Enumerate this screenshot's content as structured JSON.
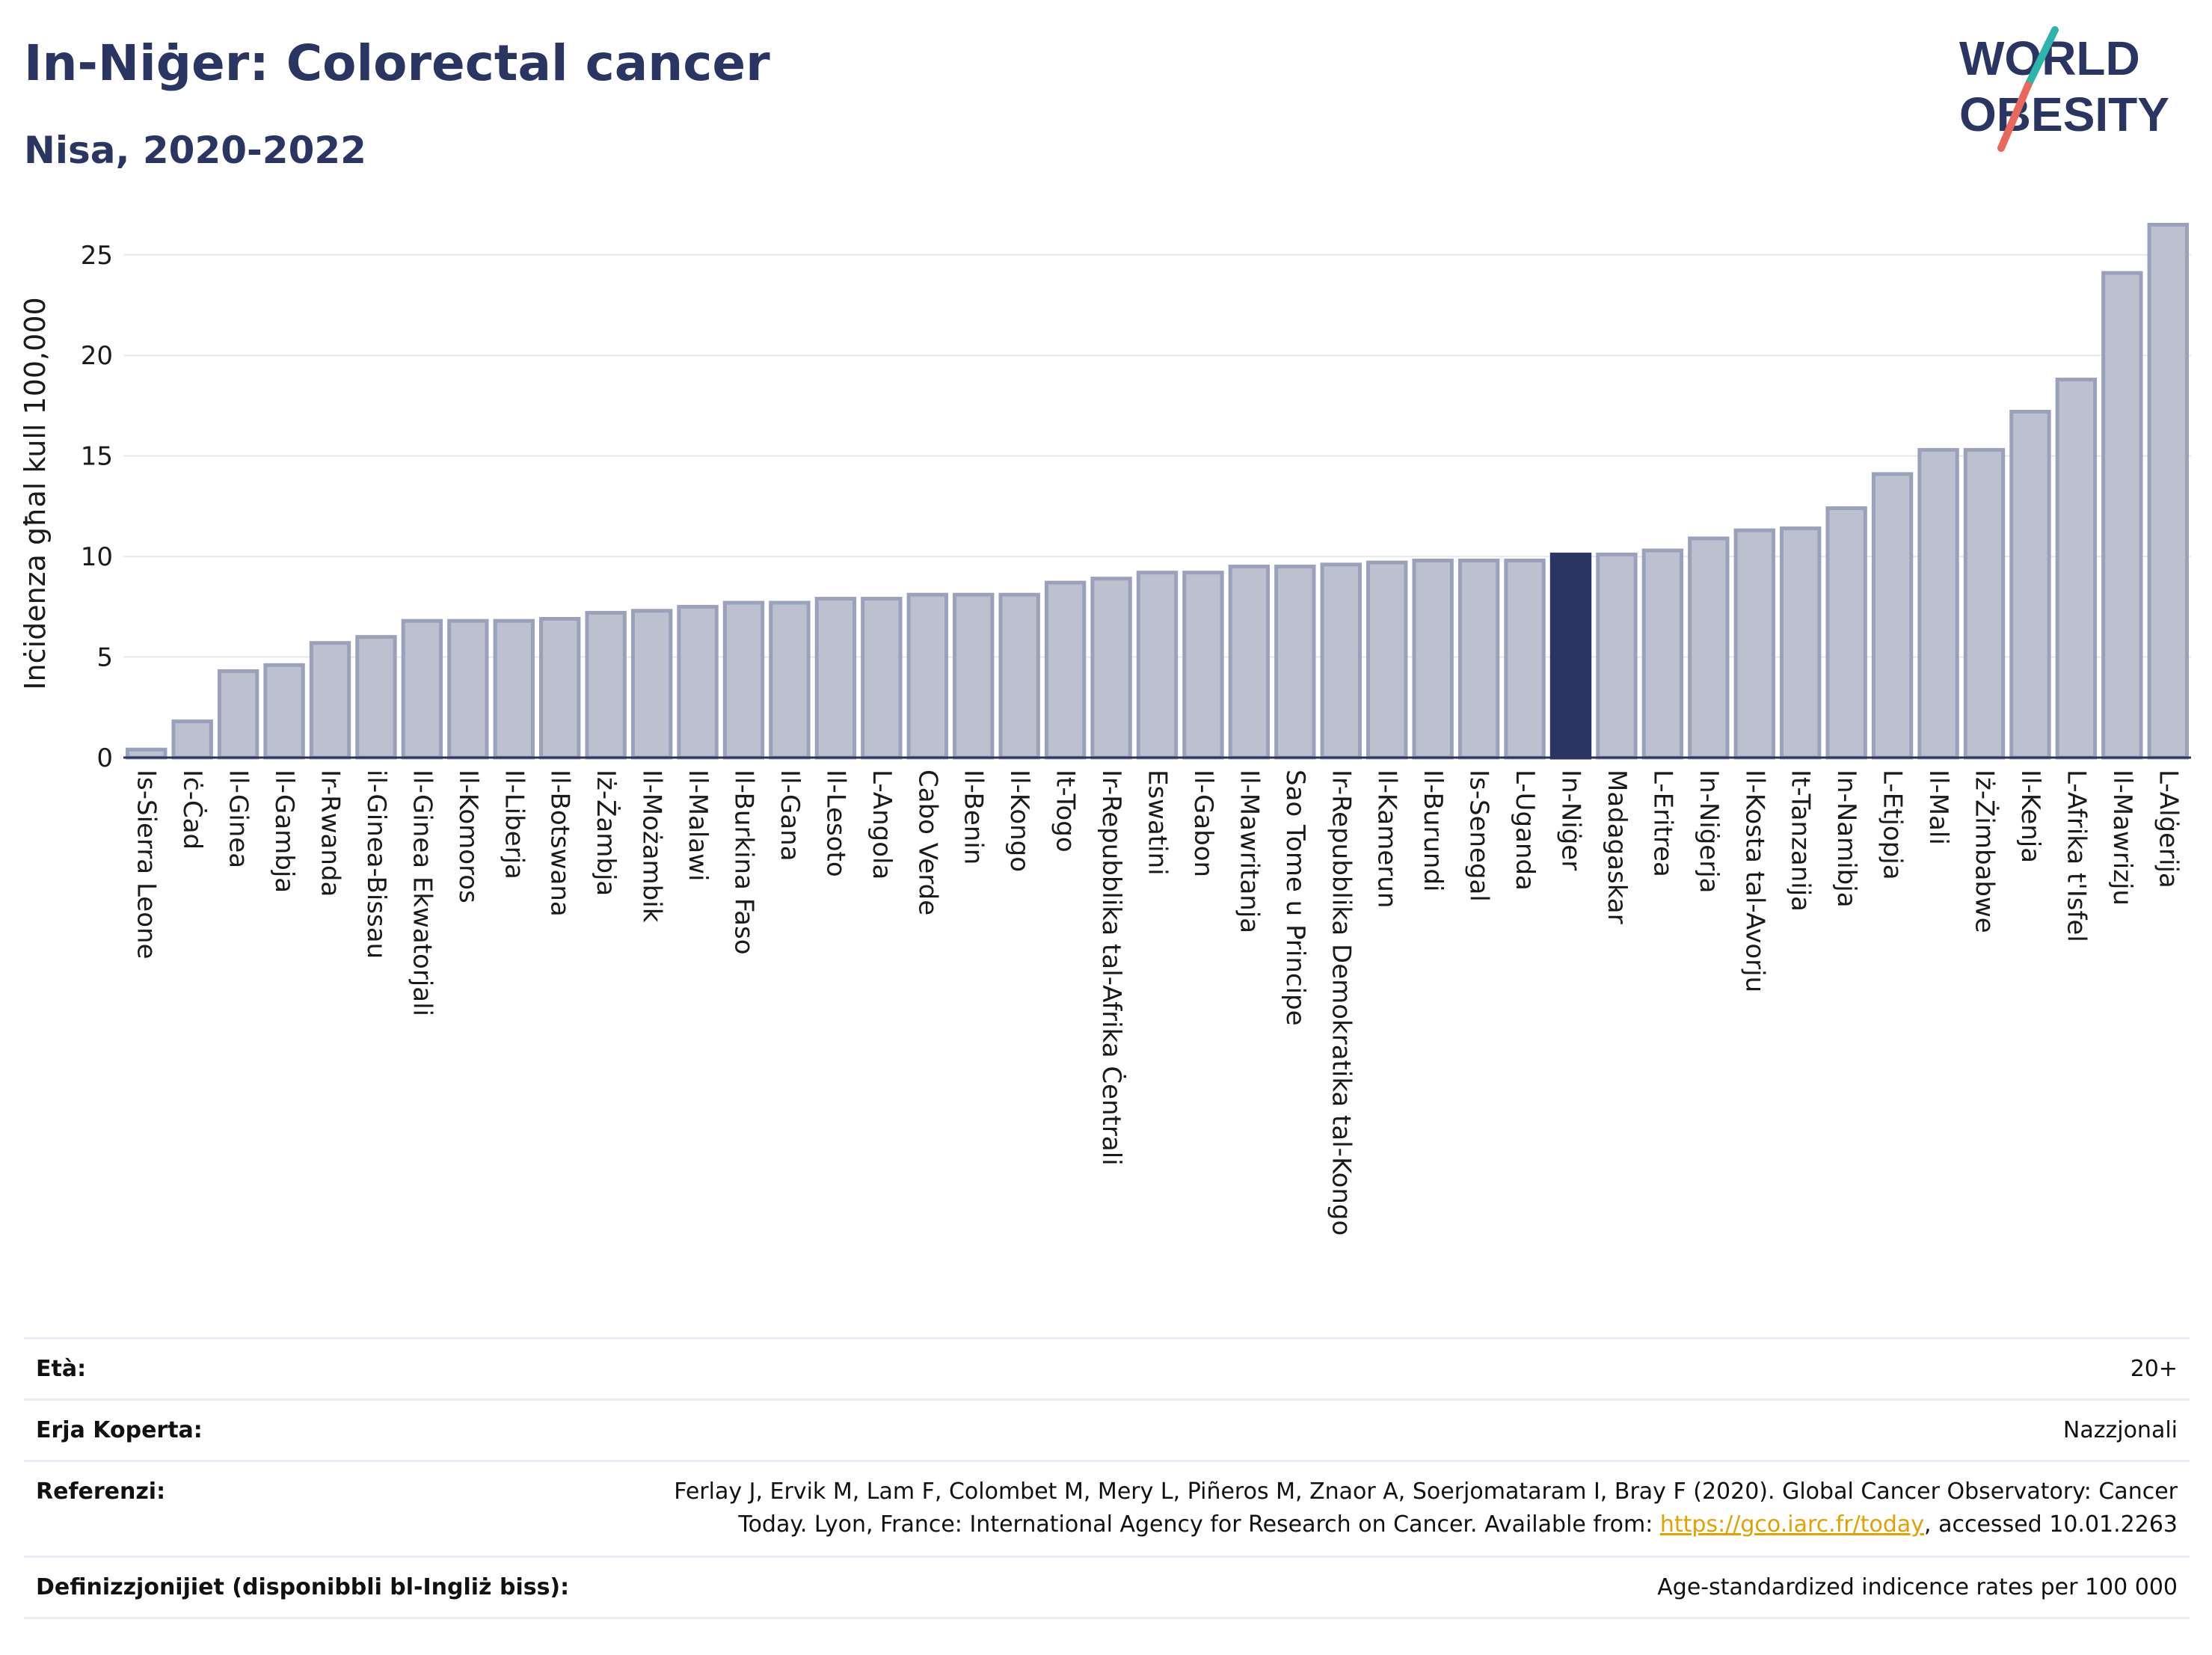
{
  "header": {
    "title": "In-Niġer: Colorectal cancer",
    "subtitle": "Nisa, 2020-2022"
  },
  "logo": {
    "line1": "WORLD",
    "line2": "OBESITY",
    "accent_teal": "#2cb5a8",
    "accent_red": "#e8685c"
  },
  "colors": {
    "bar": "#bcc1cf",
    "bar_border": "#9aa1bb",
    "highlight": "#2b3561"
  },
  "chart_data": {
    "type": "bar",
    "title": "In-Niġer: Colorectal cancer",
    "subtitle": "Nisa, 2020-2022",
    "xlabel": "",
    "ylabel": "Inċidenza għal kull 100,000",
    "ylim": [
      0,
      27
    ],
    "yticks": [
      0,
      5,
      10,
      15,
      20,
      25
    ],
    "grid": true,
    "highlight": "In-Niġer",
    "categories": [
      "Is-Sierra Leone",
      "Iċ-Ċad",
      "Il-Ginea",
      "Il-Gambja",
      "Ir-Rwanda",
      "il-Ginea-Bissau",
      "Il-Ginea Ekwatorjali",
      "Il-Komoros",
      "Il-Liberja",
      "Il-Botswana",
      "Iż-Żambja",
      "Il-Możambik",
      "Il-Malawi",
      "Il-Burkina Faso",
      "Il-Gana",
      "Il-Lesoto",
      "L-Angola",
      "Cabo Verde",
      "Il-Benin",
      "Il-Kongo",
      "It-Togo",
      "Ir-Repubblika tal-Afrika Ċentrali",
      "Eswatini",
      "Il-Gabon",
      "Il-Mawritanja",
      "Sao Tome u Principe",
      "Ir-Repubblika Demokratika tal-Kongo",
      "Il-Kamerun",
      "Il-Burundi",
      "Is-Senegal",
      "L-Uganda",
      "In-Niġer",
      "Madagaskar",
      "L-Eritrea",
      "In-Niġerja",
      "Il-Kosta tal-Avorju",
      "It-Tanzanija",
      "In-Namibja",
      "L-Etjopja",
      "Il-Mali",
      "Iż-Żimbabwe",
      "Il-Kenja",
      "L-Afrika t'Isfel",
      "Il-Mawrizju",
      "L-Alġerija"
    ],
    "values": [
      0.4,
      1.8,
      4.3,
      4.6,
      5.7,
      6.0,
      6.8,
      6.8,
      6.8,
      6.9,
      7.2,
      7.3,
      7.5,
      7.7,
      7.7,
      7.9,
      7.9,
      8.1,
      8.1,
      8.1,
      8.7,
      8.9,
      9.2,
      9.2,
      9.5,
      9.5,
      9.6,
      9.7,
      9.8,
      9.8,
      9.8,
      10.1,
      10.1,
      10.3,
      10.9,
      11.3,
      11.4,
      12.4,
      14.1,
      15.3,
      15.3,
      17.2,
      18.8,
      24.1,
      26.5
    ]
  },
  "info": {
    "age_label": "Età:",
    "age_value": "20+",
    "coverage_label": "Erja Koperta:",
    "coverage_value": "Nazzjonali",
    "ref_label": "Referenzi:",
    "ref_line1": "Ferlay J, Ervik M, Lam F, Colombet M, Mery L, Piñeros M, Znaor A, Soerjomataram I, Bray F (2020). Global Cancer Observatory: Cancer",
    "ref_line2_pre": "Today. Lyon, France: International Agency for Research on Cancer. Available from: ",
    "ref_link": "https://gco.iarc.fr/today",
    "ref_line2_post": ", accessed 10.01.2263",
    "def_label": "Definizzjonijiet (disponibbli bl-Ingliż biss):",
    "def_value": "Age-standardized indicence rates per 100 000"
  }
}
